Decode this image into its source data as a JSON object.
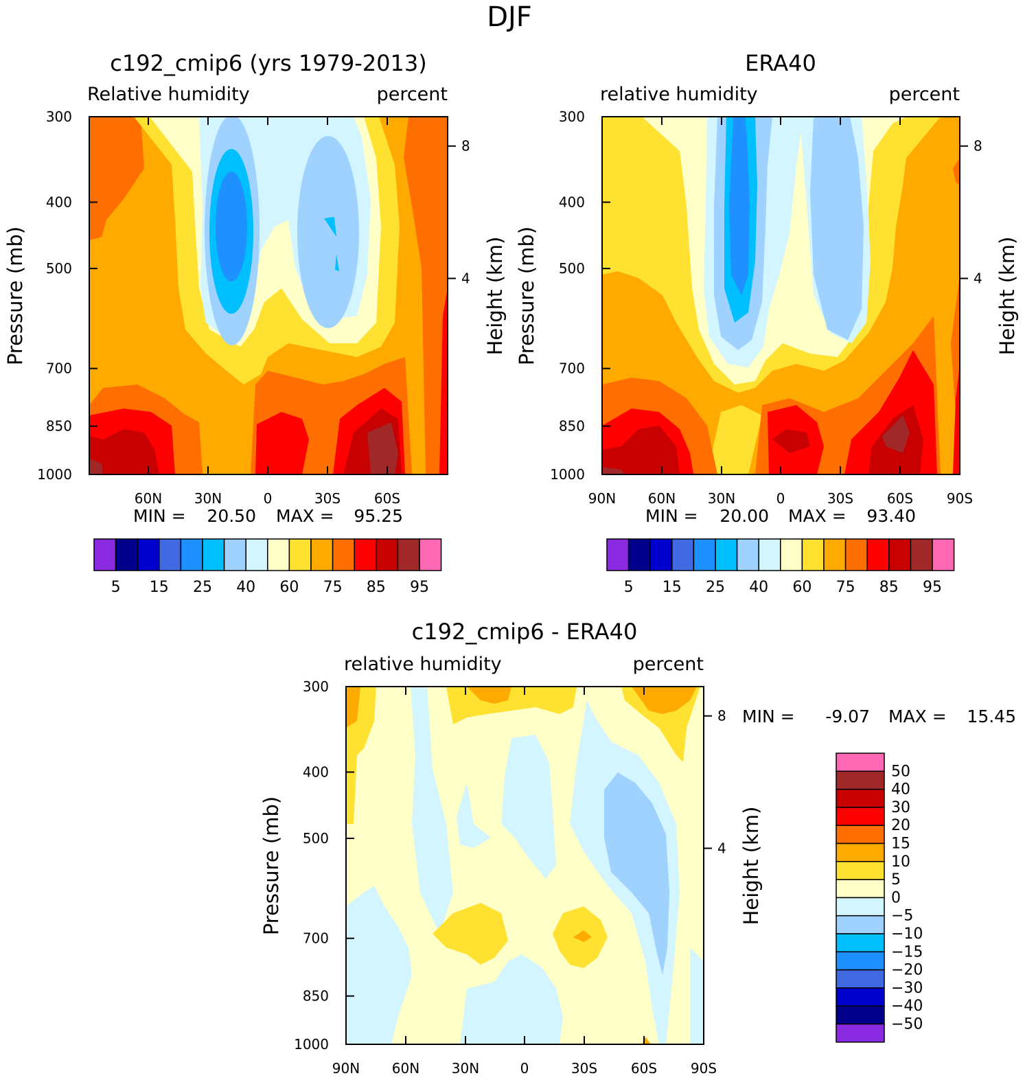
{
  "chart_data": {
    "super_title": "DJF",
    "type": "contour",
    "panels": [
      {
        "id": "model",
        "title": "c192_cmip6 (yrs 1979-2013)",
        "left_label": "Relative humidity",
        "right_label": "percent",
        "ylabel": "Pressure (mb)",
        "y2label": "Height (km)",
        "y_ticks": [
          "300",
          "400",
          "500",
          "700",
          "850",
          "1000"
        ],
        "y2_ticks": [
          "8",
          "4"
        ],
        "x_ticks": [
          "60N",
          "30N",
          "0",
          "30S",
          "60S"
        ],
        "min_label": "MIN =",
        "min_value": "20.50",
        "max_label": "MAX =",
        "max_value": "95.25",
        "legend": {
          "colors": [
            "#8a2be2",
            "#00008b",
            "#0000cd",
            "#4169e1",
            "#1e90ff",
            "#00bfff",
            "#a0d2ff",
            "#d2f5ff",
            "#ffffc8",
            "#ffe132",
            "#ffaa00",
            "#ff6e00",
            "#ff0000",
            "#c80000",
            "#a02828",
            "#ff69b4"
          ],
          "labels": [
            "5",
            "15",
            "25",
            "40",
            "60",
            "75",
            "85",
            "95"
          ]
        }
      },
      {
        "id": "obs",
        "title": "ERA40",
        "left_label": "relative humidity",
        "right_label": "percent",
        "ylabel": "Pressure (mb)",
        "y2label": "Height (km)",
        "y_ticks": [
          "300",
          "400",
          "500",
          "700",
          "850",
          "1000"
        ],
        "y2_ticks": [
          "8",
          "4"
        ],
        "x_ticks": [
          "90N",
          "60N",
          "30N",
          "0",
          "30S",
          "60S",
          "90S"
        ],
        "min_label": "MIN =",
        "min_value": "20.00",
        "max_label": "MAX =",
        "max_value": "93.40",
        "legend": {
          "colors": [
            "#8a2be2",
            "#00008b",
            "#0000cd",
            "#4169e1",
            "#1e90ff",
            "#00bfff",
            "#a0d2ff",
            "#d2f5ff",
            "#ffffc8",
            "#ffe132",
            "#ffaa00",
            "#ff6e00",
            "#ff0000",
            "#c80000",
            "#a02828",
            "#ff69b4"
          ],
          "labels": [
            "5",
            "15",
            "25",
            "40",
            "60",
            "75",
            "85",
            "95"
          ]
        }
      },
      {
        "id": "diff",
        "title": "c192_cmip6 - ERA40",
        "left_label": "relative humidity",
        "right_label": "percent",
        "ylabel": "Pressure (mb)",
        "y2label": "Height (km)",
        "y_ticks": [
          "300",
          "400",
          "500",
          "700",
          "850",
          "1000"
        ],
        "y2_ticks": [
          "8",
          "4"
        ],
        "x_ticks": [
          "90N",
          "60N",
          "30N",
          "0",
          "30S",
          "60S",
          "90S"
        ],
        "min_label": "MIN =",
        "min_value": "-9.07",
        "max_label": "MAX =",
        "max_value": "15.45",
        "legend": {
          "colors": [
            "#ff69b4",
            "#a02828",
            "#c80000",
            "#ff0000",
            "#ff6e00",
            "#ffaa00",
            "#ffe132",
            "#ffffc8",
            "#d2f5ff",
            "#a0d2ff",
            "#00bfff",
            "#1e90ff",
            "#4169e1",
            "#0000cd",
            "#00008b",
            "#8a2be2"
          ],
          "labels": [
            "50",
            "40",
            "30",
            "20",
            "15",
            "10",
            "5",
            "0",
            "−5",
            "−10",
            "−15",
            "−20",
            "−30",
            "−40",
            "−50"
          ]
        }
      }
    ]
  }
}
